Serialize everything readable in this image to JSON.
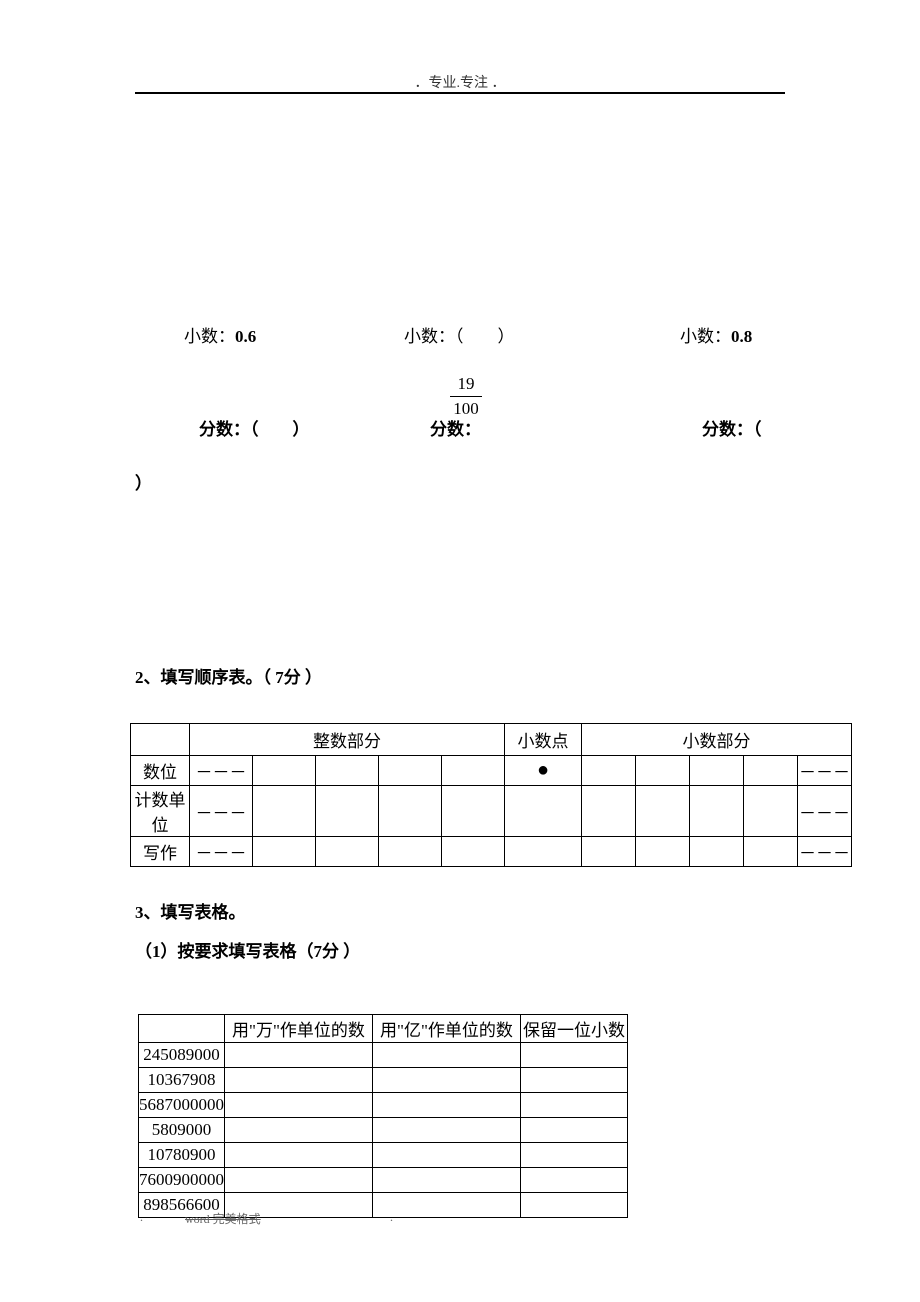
{
  "header": {
    "text": "．专业.专注 ．"
  },
  "line1": {
    "left_label": "小数：",
    "left_value": "0.6",
    "mid_label": "小数：（　　）",
    "right_label": "小数：",
    "right_value": "0.8"
  },
  "fraction": {
    "numerator": "19",
    "denominator": "100"
  },
  "line2": {
    "left": "分数：（　　）",
    "mid": "分数：",
    "right": "分数：（"
  },
  "line3": {
    "text": "）"
  },
  "section2": {
    "title": "2、填写顺序表。（ 7分 ）"
  },
  "table1": {
    "headers": {
      "integer": "整数部分",
      "dot": "小数点",
      "decimal": "小数部分"
    },
    "rowLabels": [
      "数位",
      "计数单位",
      "写作"
    ],
    "dash": "－－－",
    "dot": "●"
  },
  "section3": {
    "title": "3、填写表格。",
    "subtitle": "（1）按要求填写表格（7分 ）"
  },
  "table2": {
    "headers": [
      "",
      "用\"万\"作单位的数",
      "用\"亿\"作单位的数",
      "保留一位小数"
    ],
    "rows": [
      "245089000",
      "10367908",
      "5687000000",
      "5809000",
      "10780900",
      "7600900000",
      "898566600"
    ]
  },
  "footer": {
    "text": "word 完美格式",
    "dot": "."
  }
}
